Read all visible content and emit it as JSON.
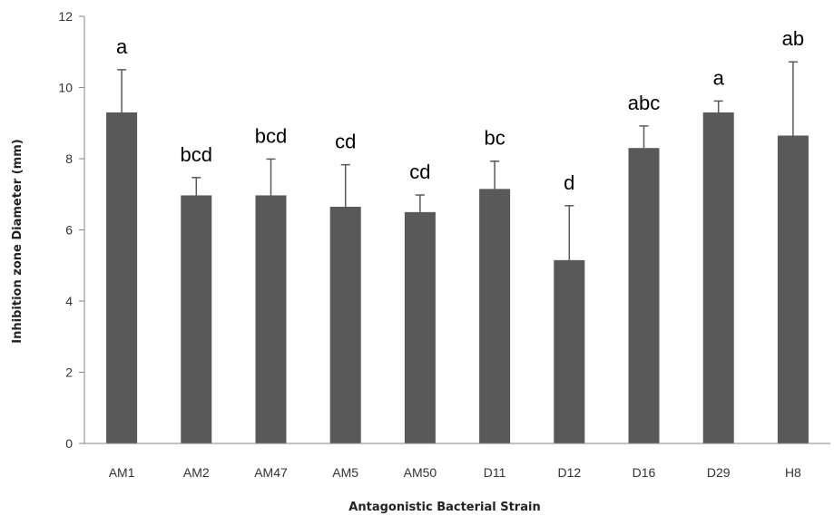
{
  "chart_data": {
    "type": "bar",
    "title": "",
    "xlabel": "Antagonistic Bacterial Strain",
    "ylabel": "Inhibition zone Diameter (mm)",
    "ylim": [
      0,
      12
    ],
    "yticks": [
      0,
      2,
      4,
      6,
      8,
      10,
      12
    ],
    "grid": false,
    "legend": "none",
    "bar_color": "#595959",
    "error_bar_color": "#595959",
    "categories": [
      "AM1",
      "AM2",
      "AM47",
      "AM5",
      "AM50",
      "D11",
      "D12",
      "D16",
      "D29",
      "H8"
    ],
    "values": [
      9.3,
      6.97,
      6.97,
      6.65,
      6.5,
      7.15,
      5.15,
      8.3,
      9.3,
      8.65
    ],
    "error_upper": [
      1.2,
      0.5,
      1.02,
      1.18,
      0.48,
      0.78,
      1.53,
      0.62,
      0.32,
      2.07
    ],
    "significance_labels": [
      "a",
      "bcd",
      "bcd",
      "cd",
      "cd",
      "bc",
      "d",
      "abc",
      "a",
      "ab"
    ]
  }
}
